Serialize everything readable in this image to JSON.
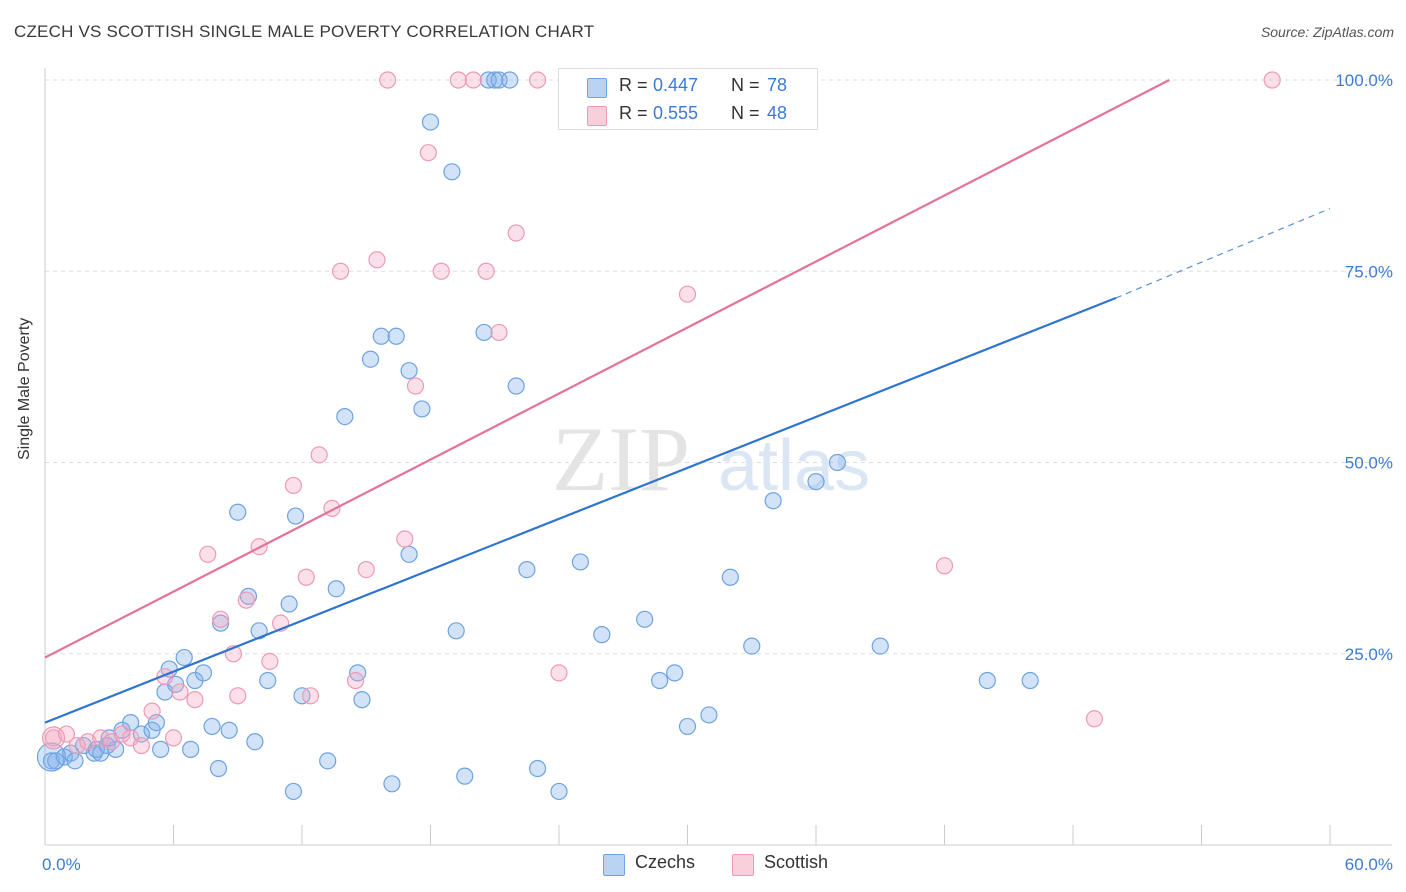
{
  "header": {
    "title": "CZECH VS SCOTTISH SINGLE MALE POVERTY CORRELATION CHART",
    "source": "Source: ZipAtlas.com"
  },
  "watermark": {
    "zip": "ZIP",
    "atlas": "atlas"
  },
  "legend_top": {
    "rows": [
      {
        "r_label": "R = ",
        "r_value": "0.447",
        "n_label": "N = ",
        "n_value": "78",
        "color": "#7fb0e8"
      },
      {
        "r_label": "R = ",
        "r_value": "0.555",
        "n_label": "N = ",
        "n_value": "48",
        "color": "#f4a7c0"
      }
    ]
  },
  "legend_bottom": {
    "items": [
      {
        "label": "Czechs",
        "color": "#7fb0e8"
      },
      {
        "label": "Scottish",
        "color": "#f4a7c0"
      }
    ]
  },
  "colors": {
    "czech_fill": "rgba(126,176,232,0.35)",
    "czech_stroke": "#6ea3e0",
    "czech_line": "#2f74d0",
    "scottish_fill": "rgba(244,167,192,0.35)",
    "scottish_stroke": "#ee9ab6",
    "scottish_line": "#e4729a",
    "tick_label": "#3a7bd5",
    "grid": "#dddddd"
  },
  "chart_data": {
    "type": "scatter",
    "title": "CZECH VS SCOTTISH SINGLE MALE POVERTY CORRELATION CHART",
    "xlabel": "",
    "ylabel": "Single Male Poverty",
    "xlim": [
      0,
      60
    ],
    "ylim": [
      0,
      100
    ],
    "x_tick_labels": [
      "0.0%",
      "60.0%"
    ],
    "y_tick_labels": [
      "100.0%",
      "75.0%",
      "50.0%",
      "25.0%"
    ],
    "y_ticks": [
      100,
      75,
      50,
      25
    ],
    "grid": true,
    "series": [
      {
        "name": "Czechs",
        "r": 0.447,
        "n": 78,
        "trendline": {
          "x": [
            0,
            50
          ],
          "y": [
            16.0,
            71.5
          ],
          "dashed_to": [
            60,
            83.2
          ]
        },
        "points": [
          [
            0.3,
            11.0
          ],
          [
            0.5,
            11.0
          ],
          [
            0.9,
            11.5
          ],
          [
            1.2,
            12.0
          ],
          [
            1.4,
            11.0
          ],
          [
            1.8,
            13.0
          ],
          [
            2.3,
            12.0
          ],
          [
            2.4,
            12.5
          ],
          [
            2.9,
            13.0
          ],
          [
            3.3,
            12.5
          ],
          [
            3.0,
            14.0
          ],
          [
            3.6,
            15.0
          ],
          [
            4.0,
            16.0
          ],
          [
            4.5,
            14.5
          ],
          [
            5.0,
            15.0
          ],
          [
            5.2,
            16.0
          ],
          [
            5.4,
            12.5
          ],
          [
            5.6,
            20.0
          ],
          [
            5.8,
            23.0
          ],
          [
            6.1,
            21.0
          ],
          [
            6.5,
            24.5
          ],
          [
            7.0,
            21.5
          ],
          [
            7.4,
            22.5
          ],
          [
            7.8,
            15.5
          ],
          [
            8.1,
            10.0
          ],
          [
            8.2,
            29.0
          ],
          [
            9.0,
            43.5
          ],
          [
            9.5,
            32.5
          ],
          [
            10.0,
            28.0
          ],
          [
            9.8,
            13.5
          ],
          [
            10.4,
            21.5
          ],
          [
            11.4,
            31.5
          ],
          [
            11.7,
            43.0
          ],
          [
            12.0,
            19.5
          ],
          [
            11.6,
            7.0
          ],
          [
            13.2,
            11.0
          ],
          [
            13.6,
            33.5
          ],
          [
            14.0,
            56.0
          ],
          [
            14.6,
            22.5
          ],
          [
            14.8,
            19.0
          ],
          [
            15.2,
            63.5
          ],
          [
            15.7,
            66.5
          ],
          [
            16.4,
            66.5
          ],
          [
            16.2,
            8.0
          ],
          [
            17.0,
            62.0
          ],
          [
            17.0,
            38.0
          ],
          [
            17.6,
            57.0
          ],
          [
            18.0,
            94.5
          ],
          [
            19.0,
            88.0
          ],
          [
            19.2,
            28.0
          ],
          [
            19.6,
            9.0
          ],
          [
            20.5,
            67.0
          ],
          [
            20.7,
            100.0
          ],
          [
            21.0,
            100.0
          ],
          [
            21.2,
            100.0
          ],
          [
            21.7,
            100.0
          ],
          [
            22.0,
            60.0
          ],
          [
            23.0,
            10.0
          ],
          [
            22.5,
            36.0
          ],
          [
            24.0,
            7.0
          ],
          [
            25.0,
            37.0
          ],
          [
            26.0,
            27.5
          ],
          [
            28.0,
            29.5
          ],
          [
            28.7,
            21.5
          ],
          [
            29.4,
            22.5
          ],
          [
            30.0,
            15.5
          ],
          [
            31.0,
            17.0
          ],
          [
            32.0,
            35.0
          ],
          [
            33.0,
            26.0
          ],
          [
            34.0,
            45.0
          ],
          [
            36.0,
            47.5
          ],
          [
            37.0,
            50.0
          ],
          [
            39.0,
            26.0
          ],
          [
            44.0,
            21.5
          ],
          [
            46.0,
            21.5
          ],
          [
            2.6,
            12.0
          ],
          [
            6.8,
            12.5
          ],
          [
            8.6,
            15.0
          ]
        ]
      },
      {
        "name": "Scottish",
        "r": 0.555,
        "n": 48,
        "trendline": {
          "x": [
            0,
            52.5
          ],
          "y": [
            24.5,
            100.0
          ]
        },
        "points": [
          [
            0.4,
            14.0
          ],
          [
            1.0,
            14.5
          ],
          [
            1.5,
            13.0
          ],
          [
            2.0,
            13.5
          ],
          [
            2.6,
            14.0
          ],
          [
            3.1,
            13.5
          ],
          [
            3.6,
            14.5
          ],
          [
            4.0,
            14.0
          ],
          [
            4.5,
            13.0
          ],
          [
            5.0,
            17.5
          ],
          [
            5.6,
            22.0
          ],
          [
            6.3,
            20.0
          ],
          [
            7.0,
            19.0
          ],
          [
            7.6,
            38.0
          ],
          [
            8.2,
            29.5
          ],
          [
            8.8,
            25.0
          ],
          [
            9.4,
            32.0
          ],
          [
            10.0,
            39.0
          ],
          [
            10.5,
            24.0
          ],
          [
            11.0,
            29.0
          ],
          [
            11.6,
            47.0
          ],
          [
            12.2,
            35.0
          ],
          [
            12.8,
            51.0
          ],
          [
            13.4,
            44.0
          ],
          [
            13.8,
            75.0
          ],
          [
            14.5,
            21.5
          ],
          [
            15.0,
            36.0
          ],
          [
            15.5,
            76.5
          ],
          [
            16.0,
            100.0
          ],
          [
            16.8,
            40.0
          ],
          [
            17.3,
            60.0
          ],
          [
            17.9,
            90.5
          ],
          [
            18.5,
            75.0
          ],
          [
            19.3,
            100.0
          ],
          [
            20.0,
            100.0
          ],
          [
            20.6,
            75.0
          ],
          [
            21.2,
            67.0
          ],
          [
            22.0,
            80.0
          ],
          [
            23.0,
            100.0
          ],
          [
            24.0,
            22.5
          ],
          [
            30.0,
            72.0
          ],
          [
            31.6,
            100.0
          ],
          [
            42.0,
            36.5
          ],
          [
            49.0,
            16.5
          ],
          [
            57.3,
            100.0
          ],
          [
            12.4,
            19.5
          ],
          [
            9.0,
            19.5
          ],
          [
            6.0,
            14.0
          ]
        ]
      }
    ]
  }
}
